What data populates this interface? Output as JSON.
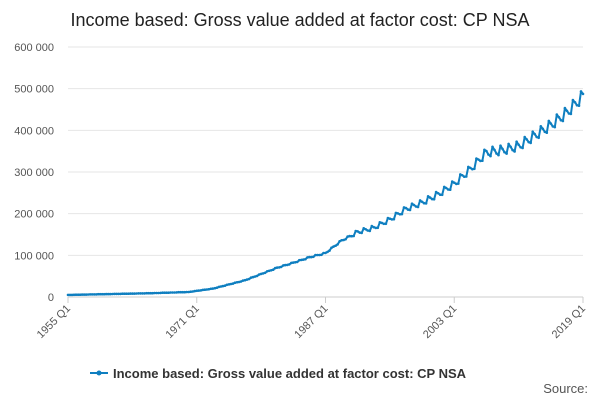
{
  "chart_data": {
    "type": "line",
    "title": "Income based: Gross value added at factor cost: CP NSA",
    "xlabel": "",
    "ylabel": "",
    "x_start": "1955 Q1",
    "x_end": "2019 Q1",
    "xtick_labels": [
      "1955 Q1",
      "1971 Q1",
      "1987 Q1",
      "2003 Q1",
      "2019 Q1"
    ],
    "ylim": [
      0,
      600000
    ],
    "ytick_values": [
      0,
      100000,
      200000,
      300000,
      400000,
      500000,
      600000
    ],
    "ytick_labels": [
      "0",
      "100 000",
      "200 000",
      "300 000",
      "400 000",
      "500 000",
      "600 000"
    ],
    "grid": "horizontal",
    "legend_position": "bottom",
    "series": [
      {
        "name": "Income based: Gross value added at factor cost: CP NSA",
        "color": "#0f7fc0",
        "anchors": [
          {
            "period": "1955 Q1",
            "value": 5000
          },
          {
            "period": "1960 Q1",
            "value": 7000
          },
          {
            "period": "1965 Q1",
            "value": 9000
          },
          {
            "period": "1970 Q1",
            "value": 12000
          },
          {
            "period": "1973 Q1",
            "value": 20000
          },
          {
            "period": "1975 Q1",
            "value": 30000
          },
          {
            "period": "1977 Q1",
            "value": 40000
          },
          {
            "period": "1979 Q1",
            "value": 55000
          },
          {
            "period": "1981 Q1",
            "value": 70000
          },
          {
            "period": "1983 Q1",
            "value": 82000
          },
          {
            "period": "1985 Q1",
            "value": 95000
          },
          {
            "period": "1987 Q1",
            "value": 105000
          },
          {
            "period": "1989 Q1",
            "value": 135000
          },
          {
            "period": "1991 Q1",
            "value": 155000
          },
          {
            "period": "1993 Q1",
            "value": 165000
          },
          {
            "period": "1995 Q1",
            "value": 185000
          },
          {
            "period": "1997 Q1",
            "value": 210000
          },
          {
            "period": "1999 Q1",
            "value": 225000
          },
          {
            "period": "2001 Q1",
            "value": 245000
          },
          {
            "period": "2003 Q1",
            "value": 270000
          },
          {
            "period": "2005 Q1",
            "value": 305000
          },
          {
            "period": "2007 Q1",
            "value": 345000
          },
          {
            "period": "2009 Q1",
            "value": 350000
          },
          {
            "period": "2011 Q1",
            "value": 360000
          },
          {
            "period": "2013 Q1",
            "value": 385000
          },
          {
            "period": "2015 Q1",
            "value": 410000
          },
          {
            "period": "2017 Q1",
            "value": 440000
          },
          {
            "period": "2019 Q1",
            "value": 480000
          }
        ]
      }
    ],
    "source_label": "Source:"
  }
}
